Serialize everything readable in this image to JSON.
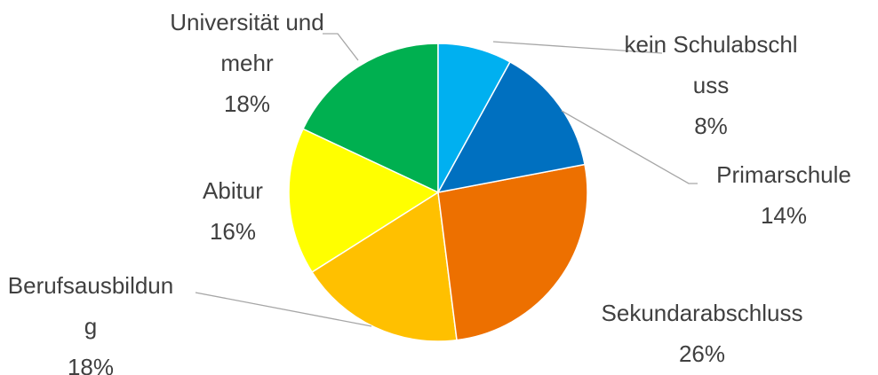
{
  "chart_data": {
    "type": "pie",
    "categories": [
      "kein Schulabschluss",
      "Primarschule",
      "Sekundarabschluss",
      "Berufsausbildung",
      "Abitur",
      "Universität und mehr"
    ],
    "values": [
      8,
      14,
      26,
      18,
      16,
      18
    ],
    "value_labels": [
      "8%",
      "14%",
      "26%",
      "18%",
      "16%",
      "18%"
    ],
    "colors": [
      "#00b0f0",
      "#0070c0",
      "#ed7000",
      "#ffc000",
      "#ffff00",
      "#00b050"
    ]
  }
}
